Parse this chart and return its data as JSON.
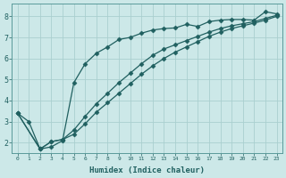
{
  "xlabel": "Humidex (Indice chaleur)",
  "background_color": "#cce8e8",
  "grid_color": "#aacfcf",
  "line_color": "#206060",
  "marker": "D",
  "markersize": 2.5,
  "linewidth": 0.9,
  "xlim": [
    -0.5,
    23.5
  ],
  "ylim": [
    1.5,
    8.6
  ],
  "yticks": [
    2,
    3,
    4,
    5,
    6,
    7,
    8
  ],
  "xticks": [
    0,
    1,
    2,
    3,
    4,
    5,
    6,
    7,
    8,
    9,
    10,
    11,
    12,
    13,
    14,
    15,
    16,
    17,
    18,
    19,
    20,
    21,
    22,
    23
  ],
  "line1_x": [
    0,
    1,
    2,
    3,
    4,
    5,
    6,
    7,
    8,
    9,
    10,
    11,
    12,
    13,
    14,
    15,
    16,
    17,
    18,
    19,
    20,
    21,
    22,
    23
  ],
  "line1_y": [
    3.4,
    3.0,
    1.7,
    1.8,
    2.1,
    4.85,
    5.75,
    6.25,
    6.55,
    6.9,
    7.0,
    7.2,
    7.35,
    7.42,
    7.45,
    7.62,
    7.52,
    7.75,
    7.82,
    7.85,
    7.85,
    7.82,
    8.22,
    8.12
  ],
  "line2_x": [
    0,
    2,
    3,
    4,
    5,
    6,
    7,
    8,
    9,
    10,
    11,
    12,
    13,
    14,
    15,
    16,
    17,
    18,
    19,
    20,
    21,
    22,
    23
  ],
  "line2_y": [
    3.4,
    1.7,
    2.05,
    2.15,
    2.6,
    3.25,
    3.85,
    4.35,
    4.85,
    5.3,
    5.75,
    6.15,
    6.45,
    6.65,
    6.85,
    7.05,
    7.25,
    7.42,
    7.55,
    7.65,
    7.75,
    7.9,
    8.05
  ],
  "line3_x": [
    0,
    2,
    3,
    4,
    5,
    6,
    7,
    8,
    9,
    10,
    11,
    12,
    13,
    14,
    15,
    16,
    17,
    18,
    19,
    20,
    21,
    22,
    23
  ],
  "line3_y": [
    3.4,
    1.7,
    2.05,
    2.15,
    2.4,
    2.9,
    3.45,
    3.9,
    4.35,
    4.8,
    5.25,
    5.65,
    6.0,
    6.3,
    6.55,
    6.8,
    7.05,
    7.25,
    7.42,
    7.55,
    7.68,
    7.82,
    8.0
  ]
}
